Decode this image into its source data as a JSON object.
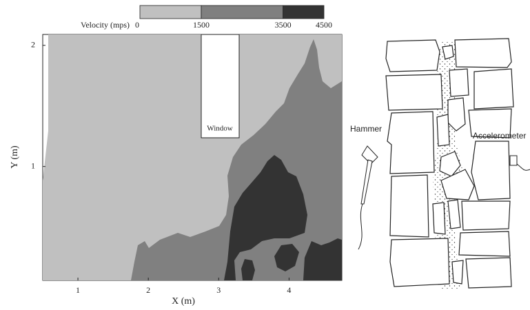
{
  "chart_data": {
    "type": "contour",
    "colorbar": {
      "label": "Velocity (mps)",
      "levels": [
        0,
        1500,
        3500,
        4500
      ],
      "colors": [
        "#c0c0c0",
        "#808080",
        "#333333"
      ]
    },
    "xlabel": "X (m)",
    "ylabel": "Y (m)",
    "xlim": [
      0.5,
      4.75
    ],
    "ylim": [
      0.06,
      2.09
    ],
    "xticks": [
      1,
      2,
      3,
      4
    ],
    "yticks": [
      1,
      2
    ],
    "annotation": "Window"
  },
  "diagram": {
    "hammer_label": "Hammer",
    "accelerometer_label": "Accelerometer"
  }
}
